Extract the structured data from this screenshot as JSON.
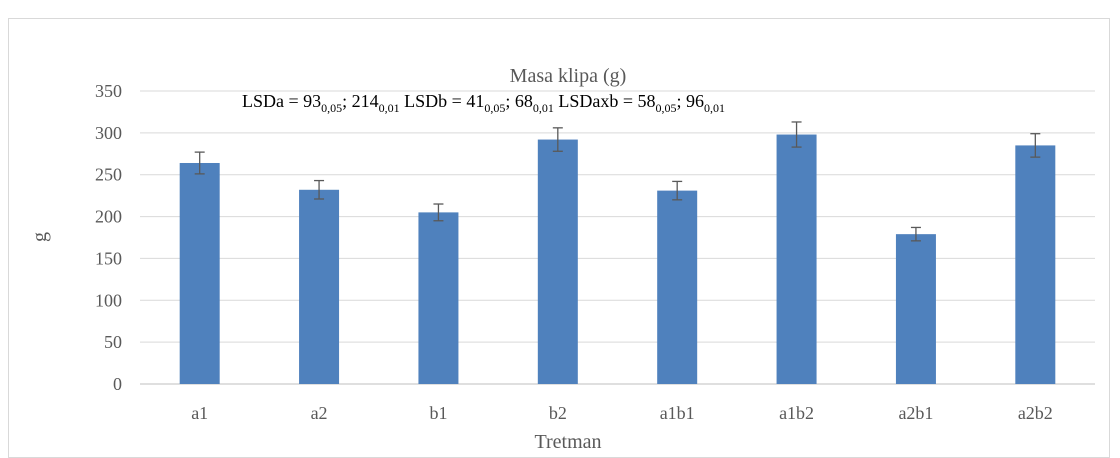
{
  "chart_data": {
    "type": "bar",
    "title": "Masa klipa (g)",
    "xlabel": "Tretman",
    "ylabel": "g",
    "ylim": [
      0,
      350
    ],
    "yticks": [
      0,
      50,
      100,
      150,
      200,
      250,
      300,
      350
    ],
    "grid": true,
    "legend": "none",
    "categories": [
      "a1",
      "a2",
      "b1",
      "b2",
      "a1b1",
      "a1b2",
      "a2b1",
      "a2b2"
    ],
    "values": [
      264,
      232,
      205,
      292,
      231,
      298,
      179,
      285
    ],
    "errors": [
      13,
      11,
      10,
      14,
      11,
      15,
      8,
      14
    ],
    "bar_color": "#4f81bd",
    "annotation": {
      "lsda": {
        "label": "LSDa = 93",
        "sub1": "0,05",
        "mid": "; 214",
        "sub2": "0,01"
      },
      "lsdb": {
        "label": " LSDb = 41",
        "sub1": "0,05",
        "mid": "; 68",
        "sub2": "0,01"
      },
      "lsdaxb": {
        "label": " LSDaxb = 58",
        "sub1": "0,05",
        "mid": "; 96",
        "sub2": "0,01"
      }
    }
  }
}
